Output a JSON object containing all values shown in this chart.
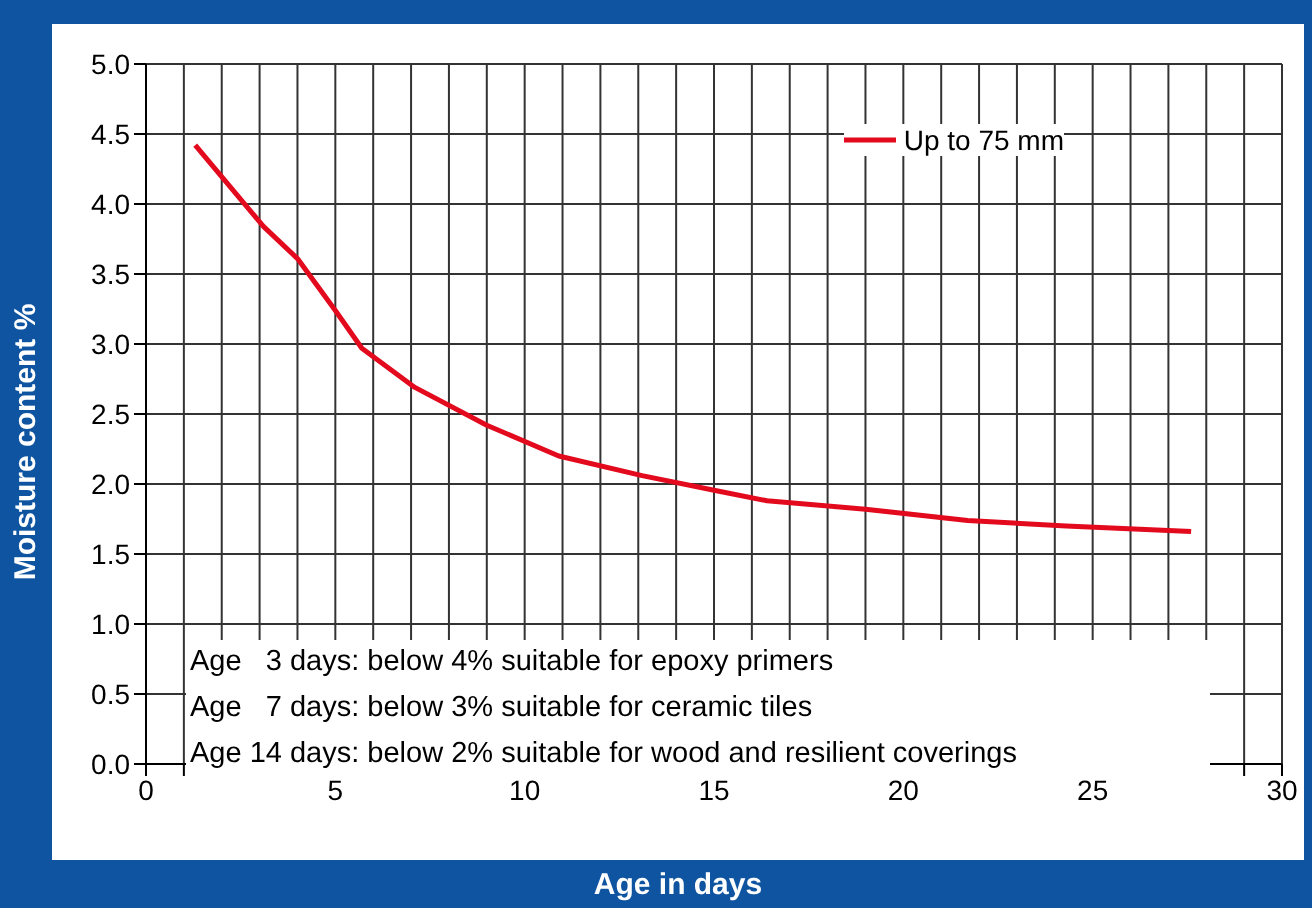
{
  "chart_data": {
    "type": "line",
    "xlabel": "Age in days",
    "ylabel": "Moisture content %",
    "annotations": [
      "Age   3 days: below 4% suitable for epoxy primers",
      "Age   7 days: below 3% suitable for ceramic tiles",
      "Age 14 days: below 2% suitable for wood and resilient coverings"
    ],
    "series": [
      {
        "name": "Up to 75 mm",
        "color": "#e30a1e",
        "x": [
          1.3,
          3.1,
          4.0,
          5.0,
          5.7,
          7.1,
          9.0,
          10.9,
          13.1,
          15.1,
          16.4,
          19.0,
          21.7,
          24.3,
          27.6
        ],
        "values": [
          4.42,
          3.84,
          3.61,
          3.24,
          2.97,
          2.69,
          2.42,
          2.2,
          2.06,
          1.95,
          1.88,
          1.82,
          1.74,
          1.7,
          1.66
        ]
      }
    ],
    "xlim": [
      0,
      30
    ],
    "xticks": [
      0,
      {
        "value": 1,
        "label": null
      },
      {
        "value": 2,
        "label": null
      },
      {
        "value": 3,
        "label": null
      },
      {
        "value": 4,
        "label": null
      },
      5,
      {
        "value": 6,
        "label": null
      },
      {
        "value": 7,
        "label": null
      },
      {
        "value": 8,
        "label": null
      },
      {
        "value": 9,
        "label": null
      },
      10,
      {
        "value": 11,
        "label": null
      },
      {
        "value": 12,
        "label": null
      },
      {
        "value": 13,
        "label": null
      },
      {
        "value": 14,
        "label": null
      },
      15,
      {
        "value": 16,
        "label": null
      },
      {
        "value": 17,
        "label": null
      },
      {
        "value": 18,
        "label": null
      },
      {
        "value": 19,
        "label": null
      },
      20,
      {
        "value": 21,
        "label": null
      },
      {
        "value": 22,
        "label": null
      },
      {
        "value": 23,
        "label": null
      },
      {
        "value": 24,
        "label": null
      },
      25,
      {
        "value": 26,
        "label": null
      },
      {
        "value": 27,
        "label": null
      },
      {
        "value": 28,
        "label": null
      },
      {
        "value": 29,
        "label": null
      },
      30
    ],
    "ylim": [
      0,
      5
    ],
    "yticks": [
      {
        "value": 0,
        "label": "0.0"
      },
      0.5,
      {
        "value": 1,
        "label": "1.0"
      },
      1.5,
      {
        "value": 2,
        "label": "2.0"
      },
      2.5,
      {
        "value": 3,
        "label": "3.0"
      },
      3.5,
      {
        "value": 4,
        "label": "4.0"
      },
      4.5,
      {
        "value": 5,
        "label": "5.0"
      }
    ],
    "grid": true,
    "legend": "top right"
  }
}
